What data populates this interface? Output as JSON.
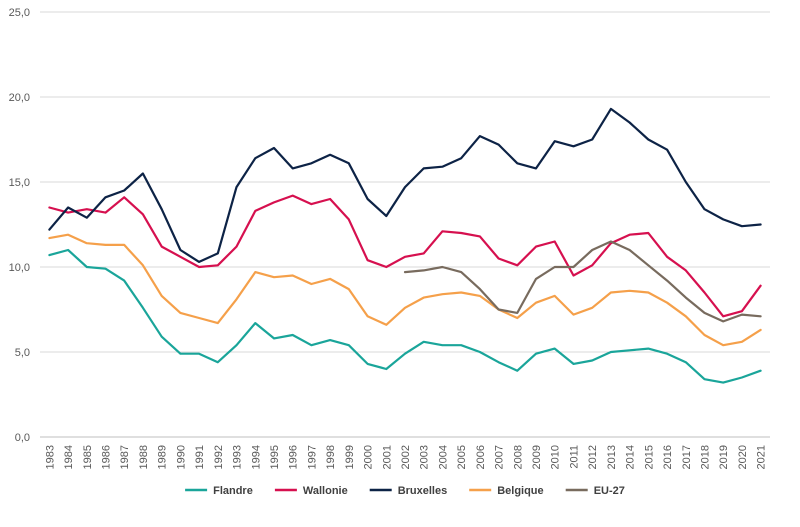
{
  "chart_data": {
    "type": "line",
    "title": "",
    "xlabel": "",
    "ylabel": "",
    "ylim": [
      0,
      25
    ],
    "y_ticks": [
      "0,0",
      "5,0",
      "10,0",
      "15,0",
      "20,0",
      "25,0"
    ],
    "grid": true,
    "legend_position": "bottom",
    "categories": [
      "1983",
      "1984",
      "1985",
      "1986",
      "1987",
      "1988",
      "1989",
      "1990",
      "1991",
      "1992",
      "1993",
      "1994",
      "1995",
      "1996",
      "1997",
      "1998",
      "1999",
      "2000",
      "2001",
      "2002",
      "2003",
      "2004",
      "2005",
      "2006",
      "2007",
      "2008",
      "2009",
      "2010",
      "2011",
      "2012",
      "2013",
      "2014",
      "2015",
      "2016",
      "2017",
      "2018",
      "2019",
      "2020",
      "2021"
    ],
    "series": [
      {
        "name": "Flandre",
        "color": "#1aa59a",
        "values": [
          10.7,
          11.0,
          10.0,
          9.9,
          9.2,
          7.6,
          5.9,
          4.9,
          4.9,
          4.4,
          5.4,
          6.7,
          5.8,
          6.0,
          5.4,
          5.7,
          5.4,
          4.3,
          4.0,
          4.9,
          5.6,
          5.4,
          5.4,
          5.0,
          4.4,
          3.9,
          4.9,
          5.2,
          4.3,
          4.5,
          5.0,
          5.1,
          5.2,
          4.9,
          4.4,
          3.4,
          3.2,
          3.5,
          3.9
        ]
      },
      {
        "name": "Wallonie",
        "color": "#d6104f",
        "values": [
          13.5,
          13.2,
          13.4,
          13.2,
          14.1,
          13.1,
          11.2,
          10.6,
          10.0,
          10.1,
          11.2,
          13.3,
          13.8,
          14.2,
          13.7,
          14.0,
          12.8,
          10.4,
          10.0,
          10.6,
          10.8,
          12.1,
          12.0,
          11.8,
          10.5,
          10.1,
          11.2,
          11.5,
          9.5,
          10.1,
          11.4,
          11.9,
          12.0,
          10.6,
          9.8,
          8.5,
          7.1,
          7.4,
          8.9
        ]
      },
      {
        "name": "Bruxelles",
        "color": "#0d2346",
        "values": [
          12.2,
          13.5,
          12.9,
          14.1,
          14.5,
          15.5,
          13.4,
          11.0,
          10.3,
          10.8,
          14.7,
          16.4,
          17.0,
          15.8,
          16.1,
          16.6,
          16.1,
          14.0,
          13.0,
          14.7,
          15.8,
          15.9,
          16.4,
          17.7,
          17.2,
          16.1,
          15.8,
          17.4,
          17.1,
          17.5,
          19.3,
          18.5,
          17.5,
          16.9,
          15.0,
          13.4,
          12.8,
          12.4,
          12.5
        ]
      },
      {
        "name": "Belgique",
        "color": "#f5a04a",
        "values": [
          11.7,
          11.9,
          11.4,
          11.3,
          11.3,
          10.1,
          8.3,
          7.3,
          7.0,
          6.7,
          8.1,
          9.7,
          9.4,
          9.5,
          9.0,
          9.3,
          8.7,
          7.1,
          6.6,
          7.6,
          8.2,
          8.4,
          8.5,
          8.3,
          7.5,
          7.0,
          7.9,
          8.3,
          7.2,
          7.6,
          8.5,
          8.6,
          8.5,
          7.9,
          7.1,
          6.0,
          5.4,
          5.6,
          6.3
        ]
      },
      {
        "name": "EU-27",
        "color": "#786b5e",
        "values": [
          null,
          null,
          null,
          null,
          null,
          null,
          null,
          null,
          null,
          null,
          null,
          null,
          null,
          null,
          null,
          null,
          null,
          null,
          null,
          9.7,
          9.8,
          10.0,
          9.7,
          8.7,
          7.5,
          7.3,
          9.3,
          10.0,
          10.0,
          11.0,
          11.5,
          11.0,
          10.1,
          9.2,
          8.2,
          7.3,
          6.8,
          7.2,
          7.1
        ]
      }
    ]
  }
}
